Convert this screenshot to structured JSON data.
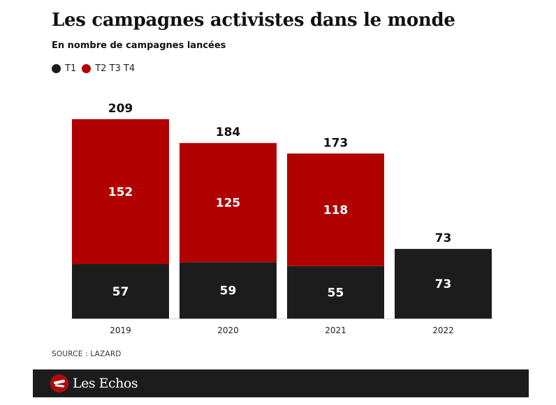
{
  "header": {
    "title": "Les campagnes activistes dans le monde",
    "subtitle": "En nombre de campagnes lancées"
  },
  "legend": [
    {
      "label": "T1",
      "color": "#1c1c1c"
    },
    {
      "label": "T2 T3 T4",
      "color": "#b00000"
    }
  ],
  "source": "SOURCE : LAZARD",
  "brand": {
    "name": "Les Echos",
    "icon": "les-echos-logo-icon"
  },
  "chart_data": {
    "type": "bar",
    "stacked": true,
    "categories": [
      "2019",
      "2020",
      "2021",
      "2022"
    ],
    "series": [
      {
        "name": "T1",
        "color": "#1c1c1c",
        "values": [
          57,
          59,
          55,
          73
        ]
      },
      {
        "name": "T2 T3 T4",
        "color": "#b00000",
        "values": [
          152,
          125,
          118,
          0
        ]
      }
    ],
    "totals": [
      209,
      184,
      173,
      73
    ],
    "title": "Les campagnes activistes dans le monde",
    "subtitle": "En nombre de campagnes lancées",
    "xlabel": "",
    "ylabel": "",
    "ylim": [
      0,
      209
    ],
    "grid": false,
    "legend_position": "top-left"
  }
}
